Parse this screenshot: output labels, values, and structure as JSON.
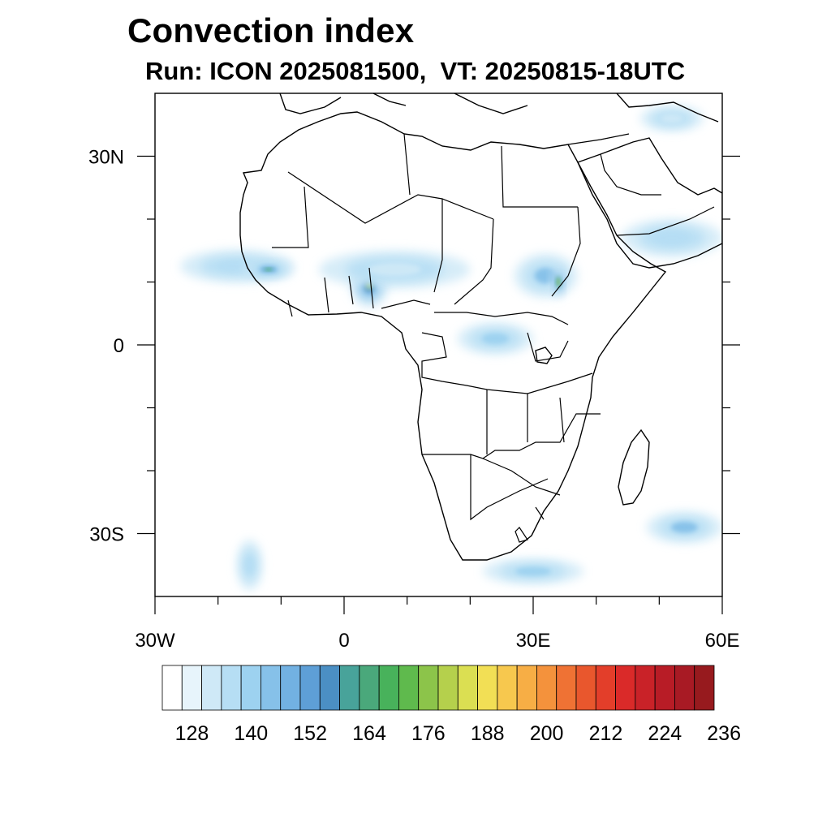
{
  "title": "Convection index",
  "subtitle": "Run: ICON 2025081500,  VT: 20250815-18UTC",
  "map": {
    "lon_range": [
      -30,
      60
    ],
    "lat_range": [
      -40,
      40
    ],
    "x_ticks": [
      {
        "value": -30,
        "label": "30W"
      },
      {
        "value": 0,
        "label": "0"
      },
      {
        "value": 30,
        "label": "30E"
      },
      {
        "value": 60,
        "label": "60E"
      }
    ],
    "y_ticks": [
      {
        "value": 30,
        "label": "30N"
      },
      {
        "value": 0,
        "label": "0"
      },
      {
        "value": -30,
        "label": "30S"
      }
    ],
    "convection_cells": [
      {
        "region": "west-africa-atlantic",
        "lon": -17,
        "lat": 12.5,
        "rx": 9,
        "ry": 2.6,
        "level": 3
      },
      {
        "region": "guinea-coast",
        "lon": -12,
        "lat": 12,
        "rx": 4,
        "ry": 1.5,
        "level": 6
      },
      {
        "region": "nigeria",
        "lon": 4,
        "lat": 9.5,
        "rx": 3,
        "ry": 3.5,
        "level": 8
      },
      {
        "region": "sahel-central",
        "lon": 8,
        "lat": 12,
        "rx": 12,
        "ry": 3,
        "level": 2
      },
      {
        "region": "south-sudan-ethiopia",
        "lon": 32,
        "lat": 11,
        "rx": 5,
        "ry": 3.5,
        "level": 5
      },
      {
        "region": "ethiopia-highlands",
        "lon": 34,
        "lat": 10,
        "rx": 1,
        "ry": 2.5,
        "level": 10
      },
      {
        "region": "congo-basin",
        "lon": 24,
        "lat": 1,
        "rx": 6,
        "ry": 2.5,
        "level": 4
      },
      {
        "region": "arabia",
        "lon": 52,
        "lat": 17,
        "rx": 8,
        "ry": 3,
        "level": 3
      },
      {
        "region": "eastern-med",
        "lon": 52,
        "lat": 36,
        "rx": 5,
        "ry": 2,
        "level": 2
      },
      {
        "region": "south-indian-ocean",
        "lon": 54,
        "lat": -29,
        "rx": 6,
        "ry": 2.5,
        "level": 5
      },
      {
        "region": "south-africa-coast",
        "lon": 30,
        "lat": -36,
        "rx": 8,
        "ry": 2,
        "level": 4
      },
      {
        "region": "south-atlantic",
        "lon": -15,
        "lat": -35,
        "rx": 2,
        "ry": 4,
        "level": 3
      }
    ]
  },
  "colorbar": {
    "colors": [
      "#ffffff",
      "#e7f4fb",
      "#cfe9f7",
      "#b6def4",
      "#9dd2f0",
      "#86c1e9",
      "#72b1e2",
      "#5e9fd7",
      "#4b8fc4",
      "#48a39a",
      "#4aa87b",
      "#48b25b",
      "#5fba4d",
      "#8cc44a",
      "#b5d04c",
      "#dbdf52",
      "#f2df55",
      "#f7c84e",
      "#f7ae45",
      "#f4923c",
      "#ef7234",
      "#e9572d",
      "#e33e2a",
      "#da2a29",
      "#c92228",
      "#b81c26",
      "#a81a24",
      "#971a1e"
    ],
    "labels": [
      "128",
      "140",
      "152",
      "164",
      "176",
      "188",
      "200",
      "212",
      "224",
      "236"
    ],
    "label_values": [
      128,
      140,
      152,
      164,
      176,
      188,
      200,
      212,
      224,
      236
    ],
    "first_bound": 122,
    "step": 4
  }
}
